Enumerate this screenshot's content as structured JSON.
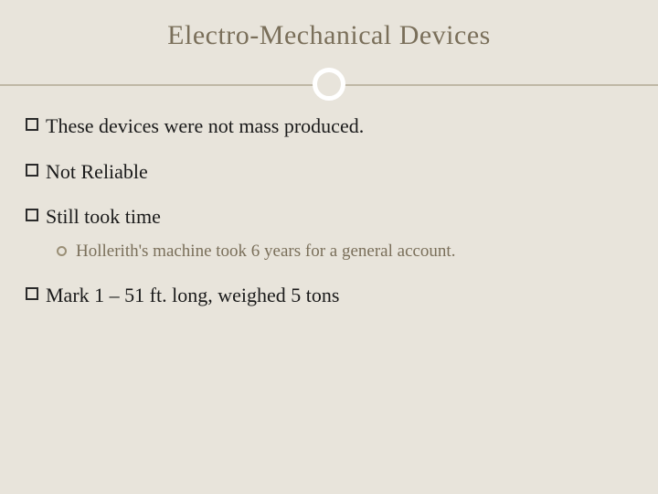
{
  "title": "Electro-Mechanical Devices",
  "colors": {
    "background": "#e8e4db",
    "title_color": "#7a6f5a",
    "body_text": "#1a1a1a",
    "sub_text": "#7a6f5a",
    "hline": "#bfb8a6",
    "circle_border": "#ffffff",
    "square_border": "#2a2a2a",
    "circ_bullet_border": "#9a8f76"
  },
  "typography": {
    "title_fontsize": 30,
    "bullet_fontsize": 22,
    "sub_fontsize": 19,
    "font_family": "Georgia, Times New Roman, serif"
  },
  "bullets": {
    "b1": "These devices were not mass produced.",
    "b2": "Not Reliable",
    "b3": "Still took time",
    "b3_sub": "Hollerith's machine took 6 years for a general account.",
    "b4": "Mark 1 – 51 ft. long, weighed 5 tons"
  }
}
